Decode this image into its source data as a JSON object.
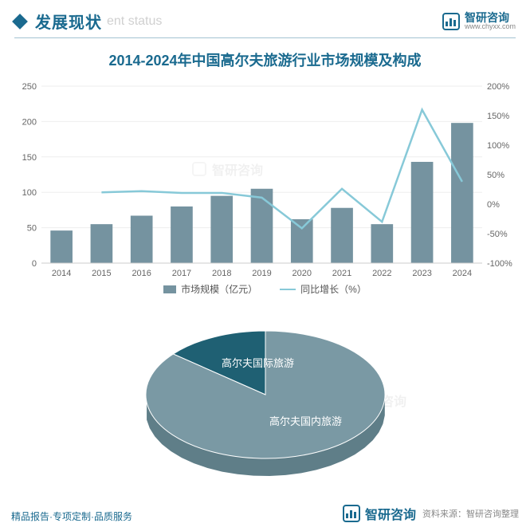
{
  "header": {
    "title_zh": "发展现状",
    "title_en": "ent status",
    "brand_zh": "智研咨询",
    "brand_url": "www.chyxx.com"
  },
  "chart": {
    "title": "2014-2024年中国高尔夫旅游行业市场规模及构成",
    "type": "bar+line",
    "categories": [
      "2014",
      "2015",
      "2016",
      "2017",
      "2018",
      "2019",
      "2020",
      "2021",
      "2022",
      "2023",
      "2024"
    ],
    "bars": {
      "label": "市场规模（亿元）",
      "values": [
        46,
        55,
        67,
        80,
        95,
        105,
        62,
        78,
        55,
        143,
        198
      ],
      "color": "#7593a0",
      "axis": {
        "min": 0,
        "max": 250,
        "step": 50
      },
      "bar_width": 0.55
    },
    "line": {
      "label": "同比增长（%）",
      "values": [
        null,
        20,
        22,
        19,
        19,
        11,
        -41,
        26,
        -30,
        160,
        38
      ],
      "color": "#87c9d8",
      "axis": {
        "min": -100,
        "max": 200,
        "step": 50,
        "suffix": "%"
      }
    },
    "grid_color": "#eeeeee",
    "axis_font": 11,
    "background": "#ffffff"
  },
  "pie": {
    "type": "pie-3d",
    "slices": [
      {
        "label": "高尔夫国际旅游",
        "value": 14,
        "color": "#1f6073"
      },
      {
        "label": "高尔夫国内旅游",
        "value": 86,
        "color": "#7a99a4"
      }
    ],
    "side_color_dark": "#164a58",
    "side_color_light": "#5f7e88"
  },
  "footer": {
    "left": "精品报告·专项定制·品质服务",
    "source": "资料来源：智研咨询整理",
    "brand_zh": "智研咨询"
  },
  "watermarks": [
    "智研咨询",
    "智研咨询"
  ]
}
